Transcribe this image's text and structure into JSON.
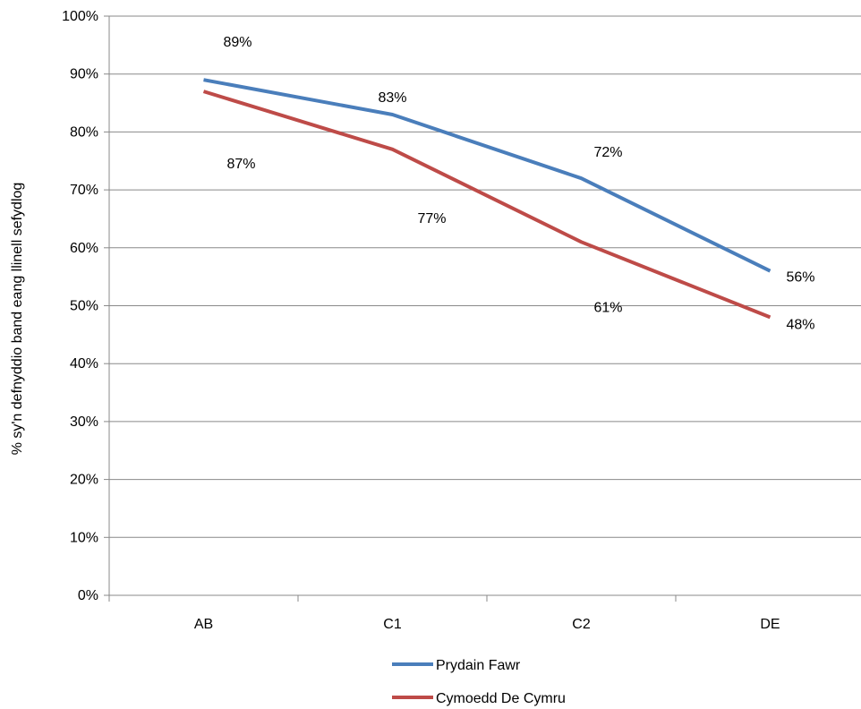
{
  "chart_data": {
    "type": "line",
    "title": "",
    "xlabel": "",
    "ylabel": "% sy'n defnyddio band eang llinell sefydlog",
    "categories": [
      "AB",
      "C1",
      "C2",
      "DE"
    ],
    "ylim": [
      0,
      100
    ],
    "yticks": [
      0,
      10,
      20,
      30,
      40,
      50,
      60,
      70,
      80,
      90,
      100
    ],
    "y_tick_suffix": "%",
    "grid": true,
    "legend_position": "bottom",
    "series": [
      {
        "name": "Prydain Fawr",
        "color": "#4a7ebb",
        "values": [
          89,
          83,
          72,
          56
        ],
        "labels": [
          "89%",
          "83%",
          "72%",
          "56%"
        ]
      },
      {
        "name": "Cymoedd De Cymru",
        "color": "#be4b48",
        "values": [
          87,
          77,
          61,
          48
        ],
        "labels": [
          "87%",
          "77%",
          "61%",
          "48%"
        ]
      }
    ]
  }
}
